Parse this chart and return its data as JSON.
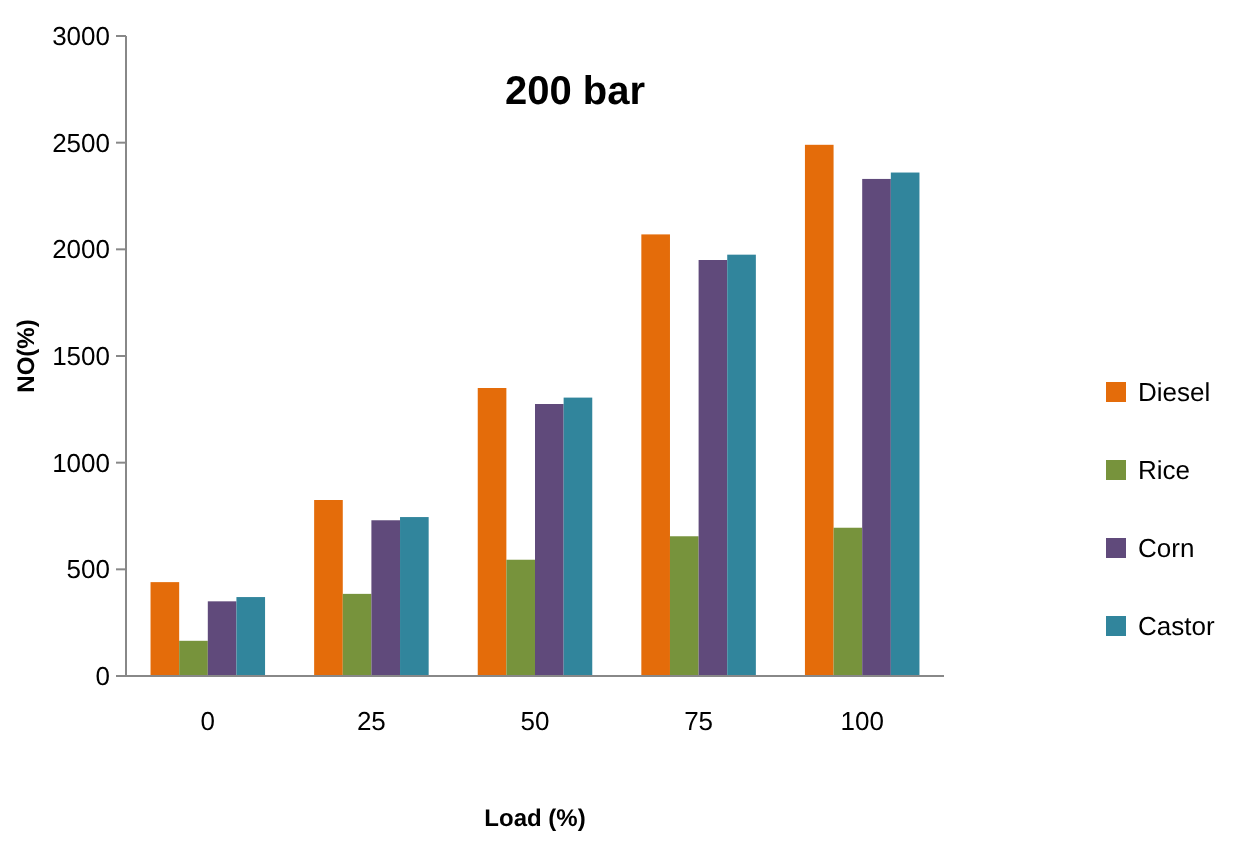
{
  "chart_data": {
    "type": "bar",
    "title": "200 bar",
    "xlabel": "Load (%)",
    "ylabel": "NO(%)",
    "categories": [
      "0",
      "25",
      "50",
      "75",
      "100"
    ],
    "series": [
      {
        "name": "Diesel",
        "color": "#e46c0a",
        "values": [
          440,
          825,
          1350,
          2070,
          2490
        ]
      },
      {
        "name": "Rice",
        "color": "#77933c",
        "values": [
          165,
          385,
          545,
          655,
          695
        ]
      },
      {
        "name": "Corn",
        "color": "#604a7b",
        "values": [
          350,
          730,
          1275,
          1950,
          2330
        ]
      },
      {
        "name": "Castor",
        "color": "#31859c",
        "values": [
          370,
          745,
          1305,
          1975,
          2360
        ]
      }
    ],
    "ylim": [
      0,
      3000
    ],
    "yticks": [
      0,
      500,
      1000,
      1500,
      2000,
      2500,
      3000
    ],
    "grid": false,
    "legend": "right"
  }
}
